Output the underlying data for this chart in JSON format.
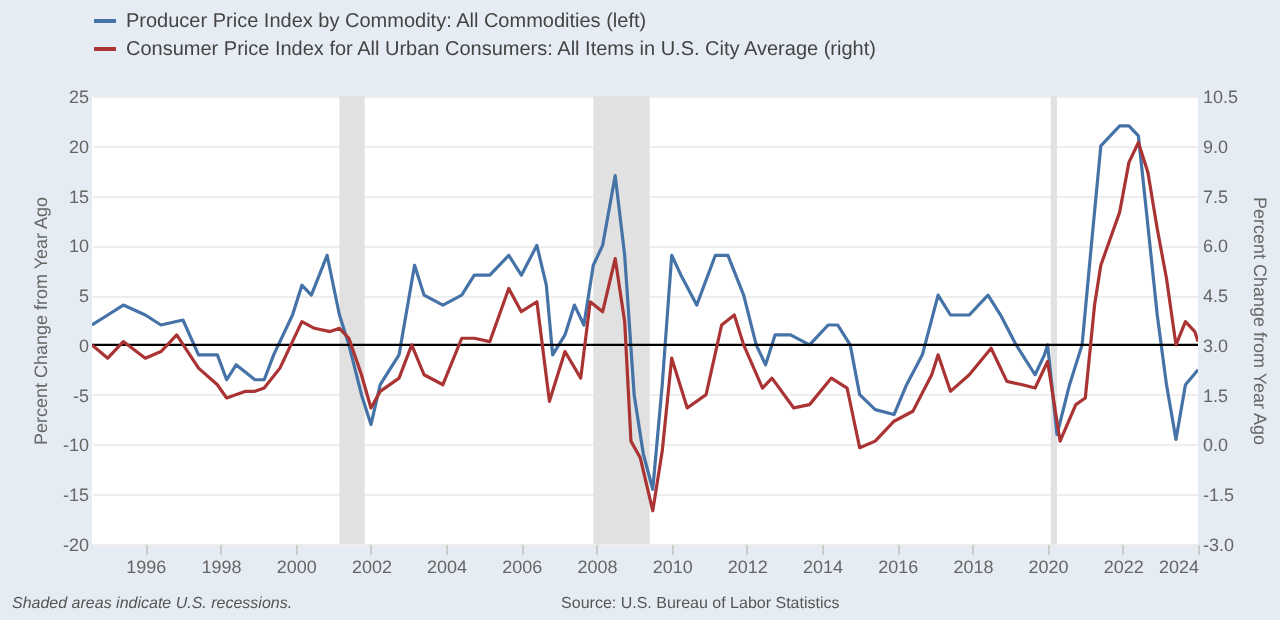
{
  "chart_data": {
    "type": "line",
    "ylabel": "Percent Change from Year Ago",
    "y2label": "Percent Change from Year Ago",
    "xlim": [
      "1994-08",
      "2024-01"
    ],
    "xticks": [
      {
        "value": "1996-01",
        "label": "1996"
      },
      {
        "value": "1998-01",
        "label": "1998"
      },
      {
        "value": "2000-01",
        "label": "2000"
      },
      {
        "value": "2002-01",
        "label": "2002"
      },
      {
        "value": "2004-01",
        "label": "2004"
      },
      {
        "value": "2006-01",
        "label": "2006"
      },
      {
        "value": "2008-01",
        "label": "2008"
      },
      {
        "value": "2010-01",
        "label": "2010"
      },
      {
        "value": "2012-01",
        "label": "2012"
      },
      {
        "value": "2014-01",
        "label": "2014"
      },
      {
        "value": "2016-01",
        "label": "2016"
      },
      {
        "value": "2018-01",
        "label": "2018"
      },
      {
        "value": "2020-01",
        "label": "2020"
      },
      {
        "value": "2022-01",
        "label": "2022"
      },
      {
        "value": "2024-01",
        "label": "2024"
      }
    ],
    "ylim": [
      -20,
      25
    ],
    "yticks": [
      -20,
      -15,
      -10,
      -5,
      0,
      5,
      10,
      15,
      20,
      25
    ],
    "y2lim": [
      -3.0,
      10.5
    ],
    "y2ticks": [
      {
        "value": -3,
        "label": "-3.0"
      },
      {
        "value": -1.5,
        "label": "-1.5"
      },
      {
        "value": 0,
        "label": "0.0"
      },
      {
        "value": 1.5,
        "label": "1.5"
      },
      {
        "value": 3,
        "label": "3.0"
      },
      {
        "value": 4.5,
        "label": "4.5"
      },
      {
        "value": 6,
        "label": "6.0"
      },
      {
        "value": 7.5,
        "label": "7.5"
      },
      {
        "value": 9,
        "label": "9.0"
      },
      {
        "value": 10.5,
        "label": "10.5"
      }
    ],
    "grid": "y",
    "legend": "top left",
    "line_style": "solid",
    "marker": "none",
    "ref_lines": [
      {
        "axis": "y",
        "value": 0,
        "label": null,
        "color": "#000000"
      }
    ],
    "bands": [
      {
        "axis": "x",
        "from": "2001-03",
        "to": "2001-11",
        "label": null,
        "color": "#e1e1e1"
      },
      {
        "axis": "x",
        "from": "2007-12",
        "to": "2009-06",
        "label": null,
        "color": "#e1e1e1"
      },
      {
        "axis": "x",
        "from": "2020-02",
        "to": "2020-04",
        "label": null,
        "color": "#e1e1e1"
      }
    ],
    "annotations": [
      "Shaded areas indicate U.S. recessions.",
      "Source: U.S. Bureau of Labor Statistics"
    ],
    "series": [
      {
        "name": "Producer Price Index by Commodity: All Commodities (left)",
        "color": "#4572a7",
        "axis": "y",
        "x": [
          "1994-08",
          "1995-01",
          "1995-06",
          "1996-01",
          "1996-06",
          "1997-01",
          "1997-06",
          "1997-12",
          "1998-03",
          "1998-06",
          "1998-12",
          "1999-03",
          "1999-06",
          "1999-12",
          "2000-03",
          "2000-06",
          "2000-11",
          "2001-03",
          "2001-06",
          "2001-10",
          "2002-01",
          "2002-04",
          "2002-10",
          "2003-03",
          "2003-06",
          "2003-12",
          "2004-06",
          "2004-10",
          "2005-03",
          "2005-09",
          "2006-01",
          "2006-06",
          "2006-09",
          "2006-11",
          "2007-03",
          "2007-06",
          "2007-09",
          "2007-12",
          "2008-03",
          "2008-07",
          "2008-10",
          "2009-01",
          "2009-04",
          "2009-07",
          "2009-10",
          "2010-01",
          "2010-04",
          "2010-09",
          "2011-03",
          "2011-07",
          "2011-12",
          "2012-04",
          "2012-07",
          "2012-10",
          "2013-03",
          "2013-09",
          "2014-03",
          "2014-06",
          "2014-10",
          "2015-01",
          "2015-06",
          "2015-12",
          "2016-04",
          "2016-09",
          "2017-02",
          "2017-06",
          "2017-12",
          "2018-06",
          "2018-10",
          "2019-03",
          "2019-09",
          "2019-12",
          "2020-01",
          "2020-04",
          "2020-08",
          "2020-12",
          "2021-03",
          "2021-06",
          "2021-12",
          "2022-03",
          "2022-06",
          "2022-09",
          "2022-12",
          "2023-03",
          "2023-06",
          "2023-09",
          "2024-01"
        ],
        "values": [
          2,
          3,
          4,
          3,
          2,
          2.5,
          -1,
          -1,
          -3.5,
          -2,
          -3.5,
          -3.5,
          -1,
          3,
          6,
          5,
          9,
          3,
          0,
          -5,
          -8,
          -4,
          -1,
          8,
          5,
          4,
          5,
          7,
          7,
          9,
          7,
          10,
          6,
          -1,
          1,
          4,
          2,
          8,
          10,
          17,
          9,
          -5,
          -11,
          -14.5,
          -4,
          9,
          7,
          4,
          9,
          9,
          5,
          0,
          -2,
          1,
          1,
          0,
          2,
          2,
          0,
          -5,
          -6.5,
          -7,
          -4,
          -1,
          5,
          3,
          3,
          5,
          3,
          0,
          -3,
          -1,
          0,
          -9,
          -4,
          0,
          10,
          20,
          22,
          22,
          21,
          12,
          3,
          -4,
          -9.5,
          -4,
          -2.5
        ]
      },
      {
        "name": "Consumer Price Index for All Urban Consumers: All Items in U.S. City Average (right)",
        "color": "#aa3333",
        "axis": "y2",
        "x": [
          "1994-08",
          "1995-01",
          "1995-06",
          "1996-01",
          "1996-06",
          "1996-11",
          "1997-06",
          "1997-12",
          "1998-03",
          "1998-09",
          "1998-12",
          "1999-03",
          "1999-08",
          "2000-03",
          "2000-07",
          "2000-12",
          "2001-03",
          "2001-06",
          "2001-10",
          "2002-01",
          "2002-04",
          "2002-10",
          "2003-02",
          "2003-06",
          "2003-12",
          "2004-06",
          "2004-10",
          "2005-03",
          "2005-09",
          "2006-01",
          "2006-06",
          "2006-10",
          "2007-03",
          "2007-08",
          "2007-11",
          "2008-03",
          "2008-07",
          "2008-10",
          "2008-12",
          "2009-03",
          "2009-07",
          "2009-10",
          "2010-01",
          "2010-06",
          "2010-12",
          "2011-05",
          "2011-09",
          "2011-12",
          "2012-06",
          "2012-09",
          "2013-04",
          "2013-09",
          "2014-04",
          "2014-09",
          "2015-01",
          "2015-06",
          "2015-12",
          "2016-06",
          "2016-12",
          "2017-02",
          "2017-06",
          "2017-12",
          "2018-07",
          "2018-12",
          "2019-05",
          "2019-09",
          "2020-01",
          "2020-05",
          "2020-10",
          "2021-01",
          "2021-04",
          "2021-06",
          "2021-12",
          "2022-03",
          "2022-06",
          "2022-09",
          "2022-12",
          "2023-03",
          "2023-06",
          "2023-09",
          "2023-12",
          "2024-01"
        ],
        "values": [
          3.0,
          2.6,
          3.1,
          2.6,
          2.8,
          3.3,
          2.3,
          1.8,
          1.4,
          1.6,
          1.6,
          1.7,
          2.3,
          3.7,
          3.5,
          3.4,
          3.5,
          3.2,
          2.1,
          1.1,
          1.6,
          2.0,
          3.0,
          2.1,
          1.8,
          3.2,
          3.2,
          3.1,
          4.7,
          4.0,
          4.3,
          1.3,
          2.8,
          2.0,
          4.3,
          4.0,
          5.6,
          3.7,
          0.1,
          -0.4,
          -2.0,
          -0.2,
          2.6,
          1.1,
          1.5,
          3.6,
          3.9,
          3.0,
          1.7,
          2.0,
          1.1,
          1.2,
          2.0,
          1.7,
          -0.1,
          0.1,
          0.7,
          1.0,
          2.1,
          2.7,
          1.6,
          2.1,
          2.9,
          1.9,
          1.8,
          1.7,
          2.5,
          0.1,
          1.2,
          1.4,
          4.2,
          5.4,
          7.0,
          8.5,
          9.1,
          8.2,
          6.5,
          5.0,
          3.0,
          3.7,
          3.4,
          3.1
        ]
      }
    ]
  }
}
